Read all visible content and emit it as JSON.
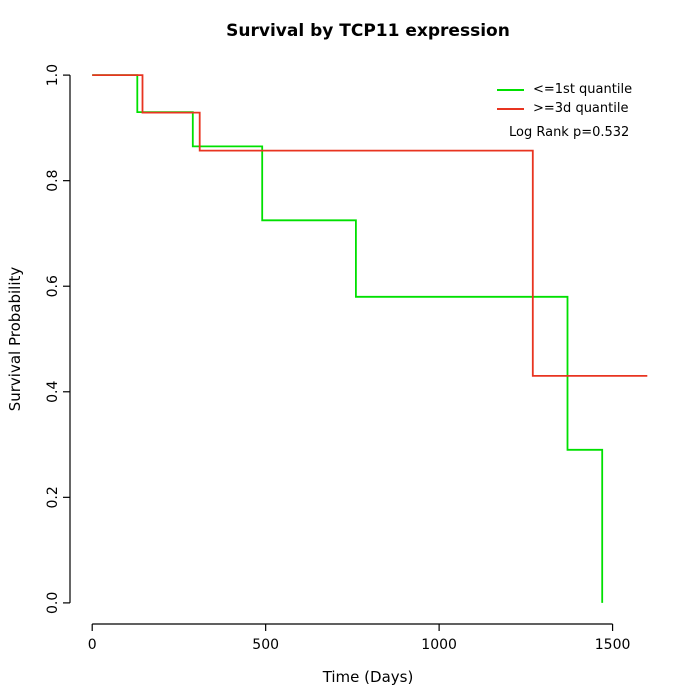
{
  "chart_data": {
    "type": "line",
    "variant": "kaplan-meier-step",
    "title": "Survival by TCP11 expression",
    "xlabel": "Time (Days)",
    "ylabel": "Survival Probability",
    "xlim": [
      -64,
      1654
    ],
    "ylim": [
      -0.04,
      1.04
    ],
    "x_ticks": [
      0,
      500,
      1000,
      1500
    ],
    "x_tick_labels": [
      "0",
      "500",
      "1000",
      "1500"
    ],
    "y_ticks": [
      0.0,
      0.2,
      0.4,
      0.6,
      0.8,
      1.0
    ],
    "y_tick_labels": [
      "0.0",
      "0.2",
      "0.4",
      "0.6",
      "0.8",
      "1.0"
    ],
    "grid": false,
    "legend_position": "top-right-inside",
    "annotation": "Log Rank p=0.532",
    "axis_color": "#000000",
    "series": [
      {
        "name": "<=1st quantile",
        "color": "#00e000",
        "step_times": [
          0,
          130,
          290,
          490,
          760,
          1370,
          1470
        ],
        "step_survival": [
          1.0,
          0.93,
          0.865,
          0.725,
          0.58,
          0.29,
          0.0
        ],
        "end_time": 1470
      },
      {
        "name": ">=3d quantile",
        "color": "#e83420",
        "step_times": [
          0,
          145,
          310,
          1270
        ],
        "step_survival": [
          1.0,
          0.929,
          0.857,
          0.43
        ],
        "end_time": 1600
      }
    ]
  }
}
